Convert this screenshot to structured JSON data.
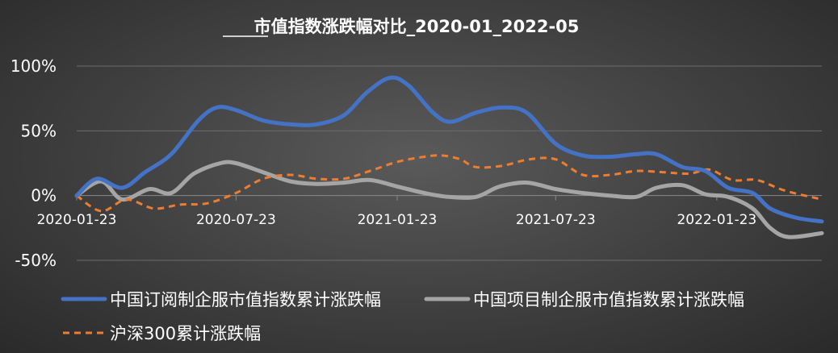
{
  "chart_data": {
    "type": "line",
    "title": "市值指数涨跌幅对比_2020-01_2022-05",
    "x_range": [
      "2020-01-23",
      "2022-05-23"
    ],
    "x_ticks": [
      "2020-01-23",
      "2020-07-23",
      "2021-01-23",
      "2021-07-23",
      "2022-01-23"
    ],
    "ylim": [
      -0.5,
      1.0
    ],
    "y_ticks": [
      -0.5,
      0,
      0.5,
      1.0
    ],
    "y_tick_labels": [
      "-50%",
      "0%",
      "50%",
      "100%"
    ],
    "grid": "horizontal",
    "legend_position": "bottom",
    "series": [
      {
        "name": "中国订阅制企服市值指数累计涨跌幅",
        "color": "#4472C4",
        "style": "solid",
        "points": [
          [
            "2020-01-23",
            0.0
          ],
          [
            "2020-02-15",
            0.13
          ],
          [
            "2020-03-15",
            0.06
          ],
          [
            "2020-04-10",
            0.18
          ],
          [
            "2020-05-10",
            0.32
          ],
          [
            "2020-06-10",
            0.58
          ],
          [
            "2020-07-01",
            0.68
          ],
          [
            "2020-07-23",
            0.66
          ],
          [
            "2020-08-23",
            0.58
          ],
          [
            "2020-09-23",
            0.55
          ],
          [
            "2020-10-23",
            0.55
          ],
          [
            "2020-11-23",
            0.62
          ],
          [
            "2020-12-20",
            0.8
          ],
          [
            "2021-01-15",
            0.91
          ],
          [
            "2021-02-05",
            0.85
          ],
          [
            "2021-03-05",
            0.64
          ],
          [
            "2021-03-25",
            0.57
          ],
          [
            "2021-04-23",
            0.64
          ],
          [
            "2021-05-23",
            0.68
          ],
          [
            "2021-06-20",
            0.64
          ],
          [
            "2021-07-23",
            0.4
          ],
          [
            "2021-08-23",
            0.31
          ],
          [
            "2021-09-23",
            0.3
          ],
          [
            "2021-10-23",
            0.32
          ],
          [
            "2021-11-15",
            0.32
          ],
          [
            "2021-12-15",
            0.22
          ],
          [
            "2022-01-10",
            0.19
          ],
          [
            "2022-02-05",
            0.06
          ],
          [
            "2022-03-05",
            0.02
          ],
          [
            "2022-03-25",
            -0.1
          ],
          [
            "2022-04-23",
            -0.17
          ],
          [
            "2022-05-23",
            -0.2
          ]
        ]
      },
      {
        "name": "中国项目制企服市值指数累计涨跌幅",
        "color": "#A5A5A5",
        "style": "solid",
        "points": [
          [
            "2020-01-23",
            0.0
          ],
          [
            "2020-02-20",
            0.11
          ],
          [
            "2020-03-15",
            -0.03
          ],
          [
            "2020-04-15",
            0.05
          ],
          [
            "2020-05-10",
            0.02
          ],
          [
            "2020-06-05",
            0.17
          ],
          [
            "2020-07-05",
            0.25
          ],
          [
            "2020-07-23",
            0.25
          ],
          [
            "2020-08-23",
            0.18
          ],
          [
            "2020-09-23",
            0.11
          ],
          [
            "2020-10-23",
            0.09
          ],
          [
            "2020-11-23",
            0.1
          ],
          [
            "2020-12-23",
            0.12
          ],
          [
            "2021-01-23",
            0.07
          ],
          [
            "2021-02-23",
            0.02
          ],
          [
            "2021-03-23",
            -0.01
          ],
          [
            "2021-04-23",
            -0.01
          ],
          [
            "2021-05-20",
            0.07
          ],
          [
            "2021-06-20",
            0.1
          ],
          [
            "2021-07-23",
            0.05
          ],
          [
            "2021-08-23",
            0.02
          ],
          [
            "2021-09-23",
            0.0
          ],
          [
            "2021-10-23",
            -0.01
          ],
          [
            "2021-11-15",
            0.06
          ],
          [
            "2021-12-15",
            0.08
          ],
          [
            "2022-01-10",
            0.01
          ],
          [
            "2022-02-05",
            -0.01
          ],
          [
            "2022-03-05",
            -0.1
          ],
          [
            "2022-03-25",
            -0.25
          ],
          [
            "2022-04-15",
            -0.32
          ],
          [
            "2022-05-23",
            -0.29
          ]
        ]
      },
      {
        "name": "沪深300累计涨跌幅",
        "color": "#ED7D31",
        "style": "dashed",
        "points": [
          [
            "2020-01-23",
            0.0
          ],
          [
            "2020-02-20",
            -0.12
          ],
          [
            "2020-03-20",
            -0.03
          ],
          [
            "2020-04-20",
            -0.1
          ],
          [
            "2020-05-20",
            -0.07
          ],
          [
            "2020-06-20",
            -0.06
          ],
          [
            "2020-07-23",
            0.02
          ],
          [
            "2020-08-23",
            0.13
          ],
          [
            "2020-09-23",
            0.16
          ],
          [
            "2020-10-23",
            0.13
          ],
          [
            "2020-11-23",
            0.13
          ],
          [
            "2020-12-23",
            0.19
          ],
          [
            "2021-01-23",
            0.26
          ],
          [
            "2021-02-23",
            0.3
          ],
          [
            "2021-03-15",
            0.31
          ],
          [
            "2021-04-05",
            0.28
          ],
          [
            "2021-04-23",
            0.22
          ],
          [
            "2021-05-23",
            0.23
          ],
          [
            "2021-06-23",
            0.28
          ],
          [
            "2021-07-23",
            0.28
          ],
          [
            "2021-08-23",
            0.16
          ],
          [
            "2021-09-23",
            0.16
          ],
          [
            "2021-10-23",
            0.19
          ],
          [
            "2021-11-23",
            0.18
          ],
          [
            "2021-12-23",
            0.17
          ],
          [
            "2022-01-15",
            0.2
          ],
          [
            "2022-02-10",
            0.12
          ],
          [
            "2022-03-10",
            0.12
          ],
          [
            "2022-04-10",
            0.04
          ],
          [
            "2022-05-23",
            -0.03
          ]
        ]
      }
    ]
  }
}
